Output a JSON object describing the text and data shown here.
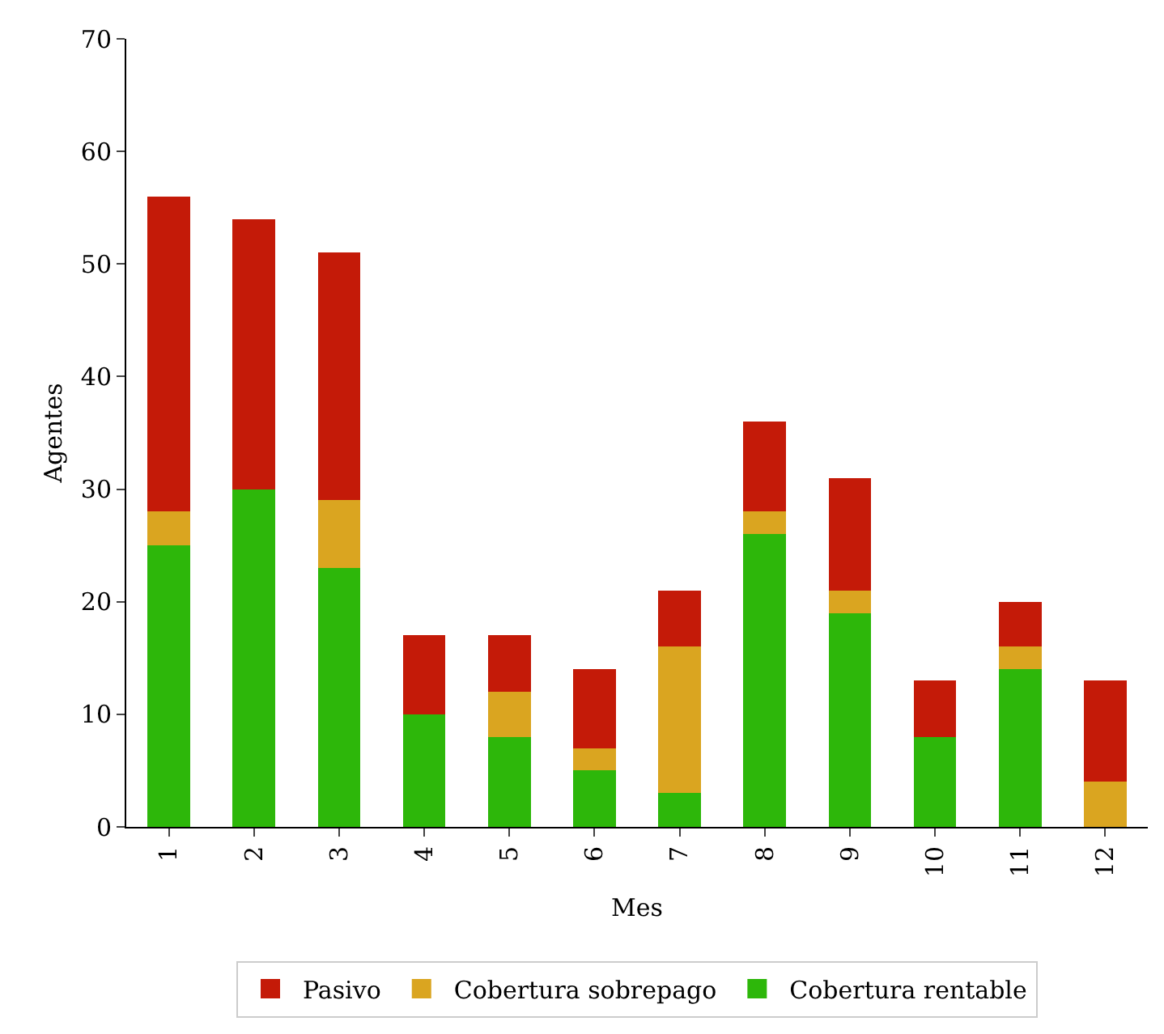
{
  "chart_data": {
    "type": "bar",
    "stacked": true,
    "xlabel": "Mes",
    "ylabel": "Agentes",
    "categories": [
      "1",
      "2",
      "3",
      "4",
      "5",
      "6",
      "7",
      "8",
      "9",
      "10",
      "11",
      "12"
    ],
    "series": [
      {
        "name": "Cobertura rentable",
        "color": "#2db70a",
        "values": [
          25,
          30,
          23,
          10,
          8,
          5,
          3,
          26,
          19,
          8,
          14,
          0
        ]
      },
      {
        "name": "Cobertura sobrepago",
        "color": "#daa520",
        "values": [
          3,
          0,
          6,
          0,
          4,
          2,
          13,
          2,
          2,
          0,
          2,
          4
        ]
      },
      {
        "name": "Pasivo",
        "color": "#c41a08",
        "values": [
          28,
          24,
          22,
          7,
          5,
          7,
          5,
          8,
          10,
          5,
          4,
          9
        ]
      }
    ],
    "ylim": [
      0,
      70
    ],
    "yticks": [
      0,
      10,
      20,
      30,
      40,
      50,
      60,
      70
    ],
    "grid": false,
    "legend": "bottom"
  }
}
